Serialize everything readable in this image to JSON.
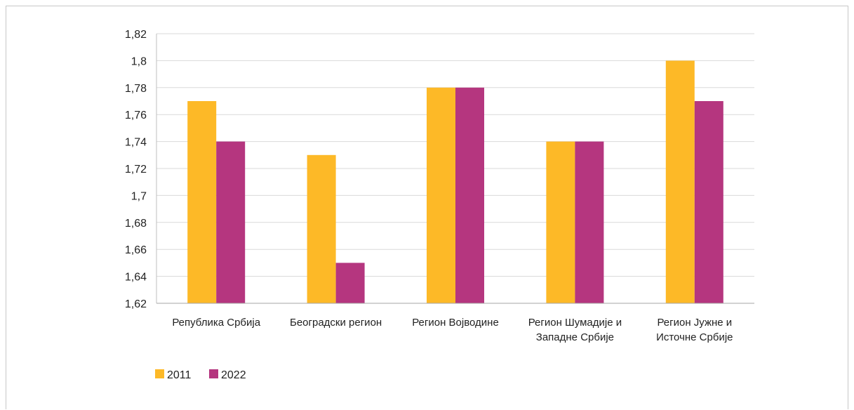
{
  "chart_data": {
    "type": "bar",
    "title": "",
    "xlabel": "",
    "ylabel": "",
    "categories": [
      [
        "Република Србија"
      ],
      [
        "Београдски регион"
      ],
      [
        "Регион Војводине"
      ],
      [
        "Регион Шумадије и",
        "Западне Србије"
      ],
      [
        "Регион Јужне и",
        "Источне Србије"
      ]
    ],
    "series": [
      {
        "name": "2011",
        "color": "#FDB927",
        "values": [
          1.77,
          1.73,
          1.78,
          1.74,
          1.8
        ]
      },
      {
        "name": "2022",
        "color": "#B5367F",
        "values": [
          1.74,
          1.65,
          1.78,
          1.74,
          1.77
        ]
      }
    ],
    "ylim": [
      1.62,
      1.82
    ],
    "yticks": [
      "1,62",
      "1,64",
      "1,66",
      "1,68",
      "1,7",
      "1,72",
      "1,74",
      "1,76",
      "1,78",
      "1,8",
      "1,82"
    ],
    "grid": true,
    "legend_position": "bottom-left"
  }
}
